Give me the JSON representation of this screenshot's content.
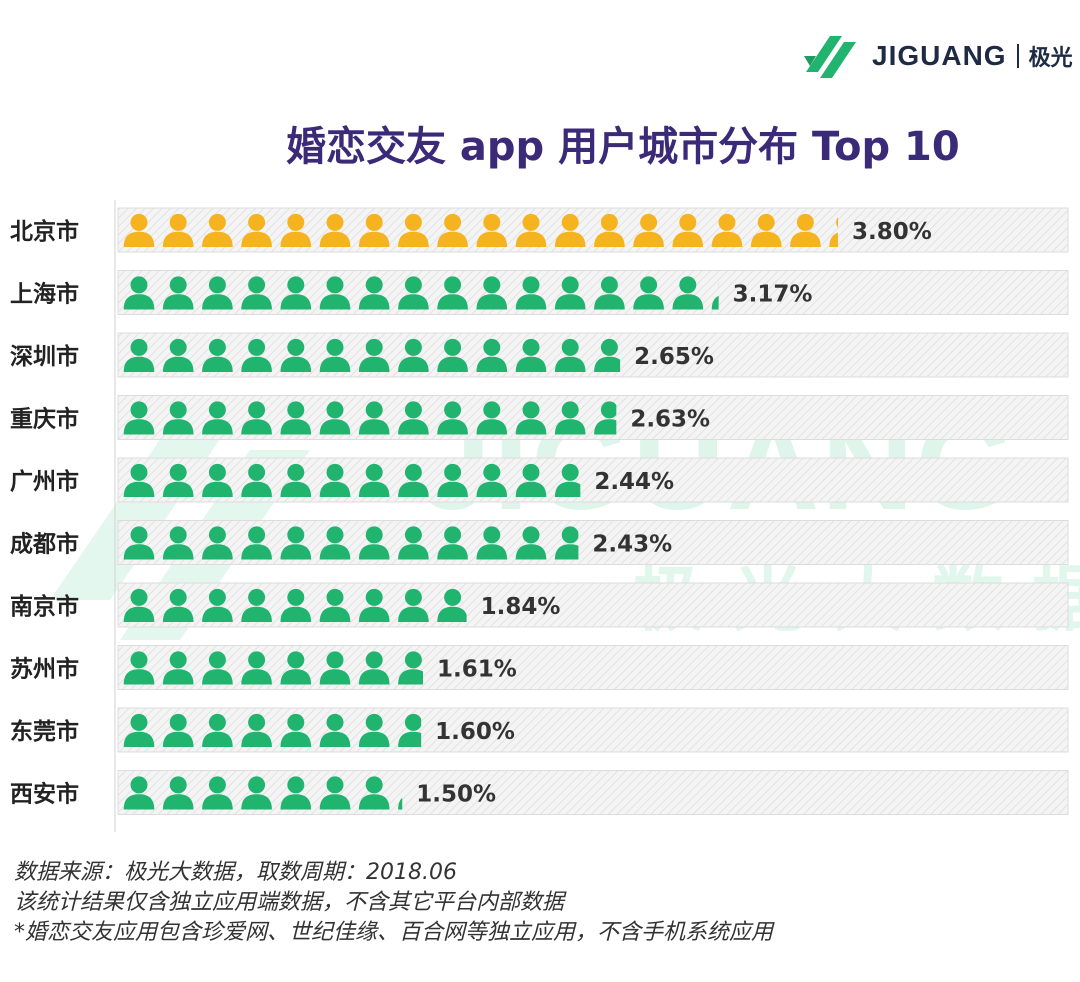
{
  "brand": {
    "logo_text": "JIGUANG",
    "logo_cn": "极光"
  },
  "watermark": {
    "word": "JIGUANG",
    "cn": "极光大数据"
  },
  "colors": {
    "top_city": "#F5B31F",
    "other_cities": "#20B46F",
    "title": "#3B2A78",
    "bar_bg": "#F2F2F2"
  },
  "chart_data": {
    "type": "bar",
    "orientation": "horizontal",
    "title": "婚恋交友 app 用户城市分布 Top 10",
    "categories": [
      "北京市",
      "上海市",
      "深圳市",
      "重庆市",
      "广州市",
      "成都市",
      "南京市",
      "苏州市",
      "东莞市",
      "西安市"
    ],
    "values": [
      3.8,
      3.17,
      2.65,
      2.63,
      2.44,
      2.43,
      1.84,
      1.61,
      1.6,
      1.5
    ],
    "labels": [
      "3.80%",
      "3.17%",
      "2.65%",
      "2.63%",
      "2.44%",
      "2.43%",
      "1.84%",
      "1.61%",
      "1.60%",
      "1.50%"
    ],
    "unit": "%",
    "icon": "person-icon",
    "max": 4.6
  },
  "notes": [
    "数据来源：极光大数据，取数周期：2018.06",
    "该统计结果仅含独立应用端数据，不含其它平台内部数据",
    " *婚恋交友应用包含珍爱网、世纪佳缘、百合网等独立应用，不含手机系统应用"
  ]
}
